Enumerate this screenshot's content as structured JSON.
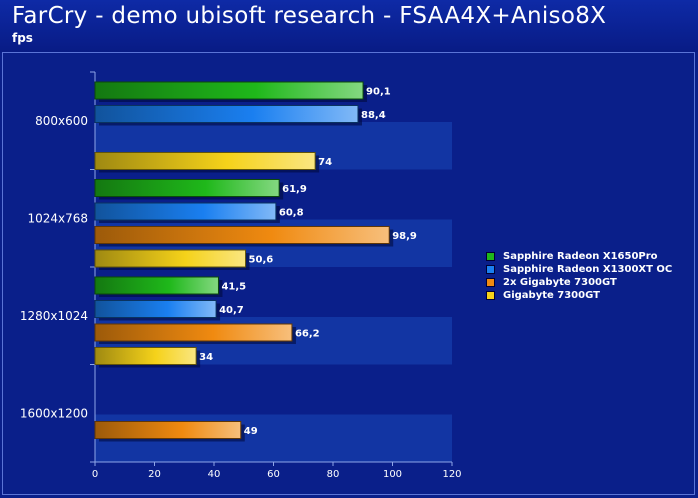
{
  "header": {
    "title": "FarCry - demo ubisoft research - FSAA4X+Aniso8X",
    "unit": "fps"
  },
  "chart_data": {
    "type": "bar",
    "orientation": "horizontal",
    "categories": [
      "800x600",
      "1024x768",
      "1280x1024",
      "1600x1200"
    ],
    "series": [
      {
        "name": "Sapphire Radeon X1650Pro",
        "color": "#1fb81a",
        "values": [
          90.1,
          61.9,
          41.5,
          null
        ]
      },
      {
        "name": "Sapphire Radeon X1300XT OC",
        "color": "#1a7ff0",
        "values": [
          88.4,
          60.8,
          40.7,
          null
        ]
      },
      {
        "name": "2x Gigabyte 7300GT",
        "color": "#f08a10",
        "values": [
          null,
          98.9,
          66.2,
          49
        ]
      },
      {
        "name": "Gigabyte 7300GT",
        "color": "#f5d21a",
        "values": [
          74,
          50.6,
          34,
          null
        ]
      }
    ],
    "value_labels": [
      [
        "90,1",
        "61,9",
        "41,5",
        ""
      ],
      [
        "88,4",
        "60,8",
        "40,7",
        ""
      ],
      [
        "",
        "98,9",
        "66,2",
        "49"
      ],
      [
        "74",
        "50,6",
        "34",
        ""
      ]
    ],
    "xlim": [
      0,
      120
    ],
    "xticks": [
      "0",
      "20",
      "40",
      "60",
      "80",
      "100",
      "120"
    ],
    "grid": false,
    "legend_position": "right"
  }
}
